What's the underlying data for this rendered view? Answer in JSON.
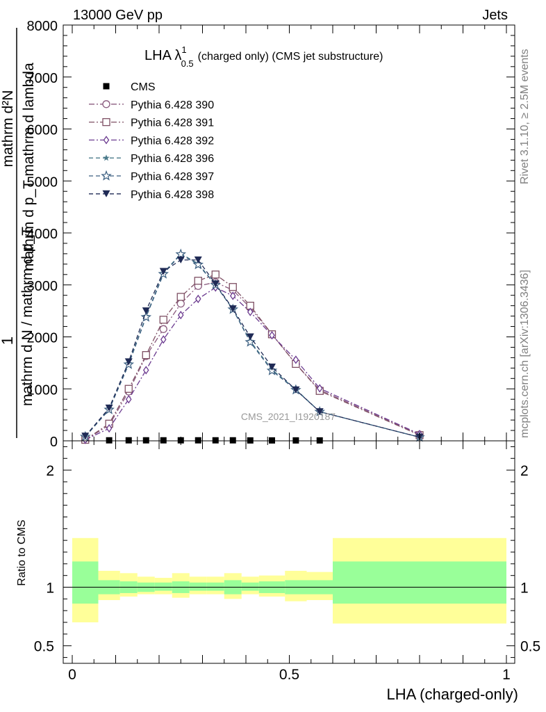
{
  "header": {
    "left": "13000 GeV pp",
    "right": "Jets"
  },
  "side_labels": {
    "top": "Rivet 3.1.10, ≥ 2.5M events",
    "bottom": "mcplots.cern.ch [arXiv:1306.3436]"
  },
  "watermark": "CMS_2021_I1920187",
  "chart_data": {
    "type": "line",
    "title_main": "LHA λ",
    "title_sup": "1",
    "title_sub": "0.5",
    "title_rest": "(charged only) (CMS jet substructure)",
    "ylabel_upper_num": "mathrm d²N",
    "ylabel_upper_den": "mathrm d p_T mathrm d lambda",
    "ylabel_upper_prefix": "1",
    "ylabel_upper_den2": "mathrm d N / mathrm d p_T",
    "ylabel_ratio": "Ratio to CMS",
    "xlabel": "LHA (charged-only)",
    "xlim": [
      0,
      1
    ],
    "ylim": [
      0,
      8000
    ],
    "ratio_ylim": [
      0.35,
      2.25
    ],
    "x_ticks": [
      "0",
      "0.5",
      "1"
    ],
    "x_tick_values": [
      0,
      0.5,
      1
    ],
    "y_ticks": [
      "0",
      "1000",
      "2000",
      "3000",
      "4000",
      "5000",
      "6000",
      "7000",
      "8000"
    ],
    "y_tick_values": [
      0,
      1000,
      2000,
      3000,
      4000,
      5000,
      6000,
      7000,
      8000
    ],
    "ratio_ticks": [
      "0.5",
      "1",
      "2"
    ],
    "ratio_tick_values": [
      0.5,
      1,
      2
    ],
    "x": [
      0.03,
      0.085,
      0.13,
      0.17,
      0.21,
      0.25,
      0.29,
      0.33,
      0.37,
      0.41,
      0.46,
      0.515,
      0.57,
      0.8
    ],
    "series": [
      {
        "name": "CMS",
        "color": "#000000",
        "marker": "square-filled",
        "dash": "",
        "values": [
          8,
          10,
          10,
          10,
          10,
          10,
          10,
          10,
          10,
          8,
          8,
          8,
          8,
          null
        ]
      },
      {
        "name": "Pythia 6.428 390",
        "color": "#8a5a7e",
        "marker": "circle-open",
        "dash": "8,3,2,3",
        "values": [
          20,
          300,
          950,
          1630,
          2150,
          2640,
          2980,
          3050,
          2900,
          2560,
          2050,
          1480,
          980,
          120
        ]
      },
      {
        "name": "Pythia 6.428 391",
        "color": "#7e4f63",
        "marker": "square-open",
        "dash": "8,3,2,3",
        "values": [
          20,
          330,
          1000,
          1650,
          2330,
          2770,
          3080,
          3200,
          2960,
          2600,
          2050,
          1480,
          960,
          110
        ]
      },
      {
        "name": "Pythia 6.428 392",
        "color": "#6b3a8f",
        "marker": "diamond-open",
        "dash": "8,3,2,3",
        "values": [
          20,
          240,
          800,
          1360,
          1950,
          2420,
          2730,
          2950,
          2790,
          2480,
          2030,
          1560,
          1010,
          130
        ]
      },
      {
        "name": "Pythia 6.428 396",
        "color": "#4a7a8a",
        "marker": "star-filled",
        "dash": "6,4",
        "values": [
          80,
          620,
          1490,
          2400,
          3230,
          3600,
          3410,
          3000,
          2530,
          1920,
          1370,
          990,
          560,
          70
        ]
      },
      {
        "name": "Pythia 6.428 397",
        "color": "#3a5e80",
        "marker": "star-open",
        "dash": "6,4",
        "values": [
          80,
          600,
          1470,
          2380,
          3210,
          3590,
          3390,
          3000,
          2530,
          1900,
          1350,
          980,
          560,
          70
        ]
      },
      {
        "name": "Pythia 6.428 398",
        "color": "#1f2a55",
        "marker": "triangle-down-filled",
        "dash": "6,4",
        "values": [
          90,
          630,
          1520,
          2500,
          3260,
          3480,
          3480,
          3020,
          2540,
          2000,
          1420,
          980,
          560,
          70
        ]
      }
    ],
    "ratio_bands": {
      "bin_edges": [
        0,
        0.06,
        0.11,
        0.15,
        0.19,
        0.23,
        0.27,
        0.31,
        0.35,
        0.39,
        0.43,
        0.49,
        0.54,
        0.6,
        1
      ],
      "yellow": [
        [
          0.7,
          1.42
        ],
        [
          0.89,
          1.14
        ],
        [
          0.92,
          1.12
        ],
        [
          0.94,
          1.09
        ],
        [
          0.94,
          1.08
        ],
        [
          0.91,
          1.12
        ],
        [
          0.94,
          1.09
        ],
        [
          0.94,
          1.09
        ],
        [
          0.9,
          1.12
        ],
        [
          0.94,
          1.09
        ],
        [
          0.92,
          1.1
        ],
        [
          0.88,
          1.14
        ],
        [
          0.89,
          1.13
        ],
        [
          0.69,
          1.42
        ]
      ],
      "green": [
        [
          0.86,
          1.22
        ],
        [
          0.94,
          1.06
        ],
        [
          0.95,
          1.05
        ],
        [
          0.96,
          1.04
        ],
        [
          0.97,
          1.04
        ],
        [
          0.95,
          1.05
        ],
        [
          0.97,
          1.04
        ],
        [
          0.97,
          1.04
        ],
        [
          0.94,
          1.06
        ],
        [
          0.97,
          1.04
        ],
        [
          0.95,
          1.05
        ],
        [
          0.94,
          1.06
        ],
        [
          0.94,
          1.06
        ],
        [
          0.86,
          1.22
        ]
      ],
      "yellow_color": "#ffff99",
      "green_color": "#99ff99"
    }
  }
}
